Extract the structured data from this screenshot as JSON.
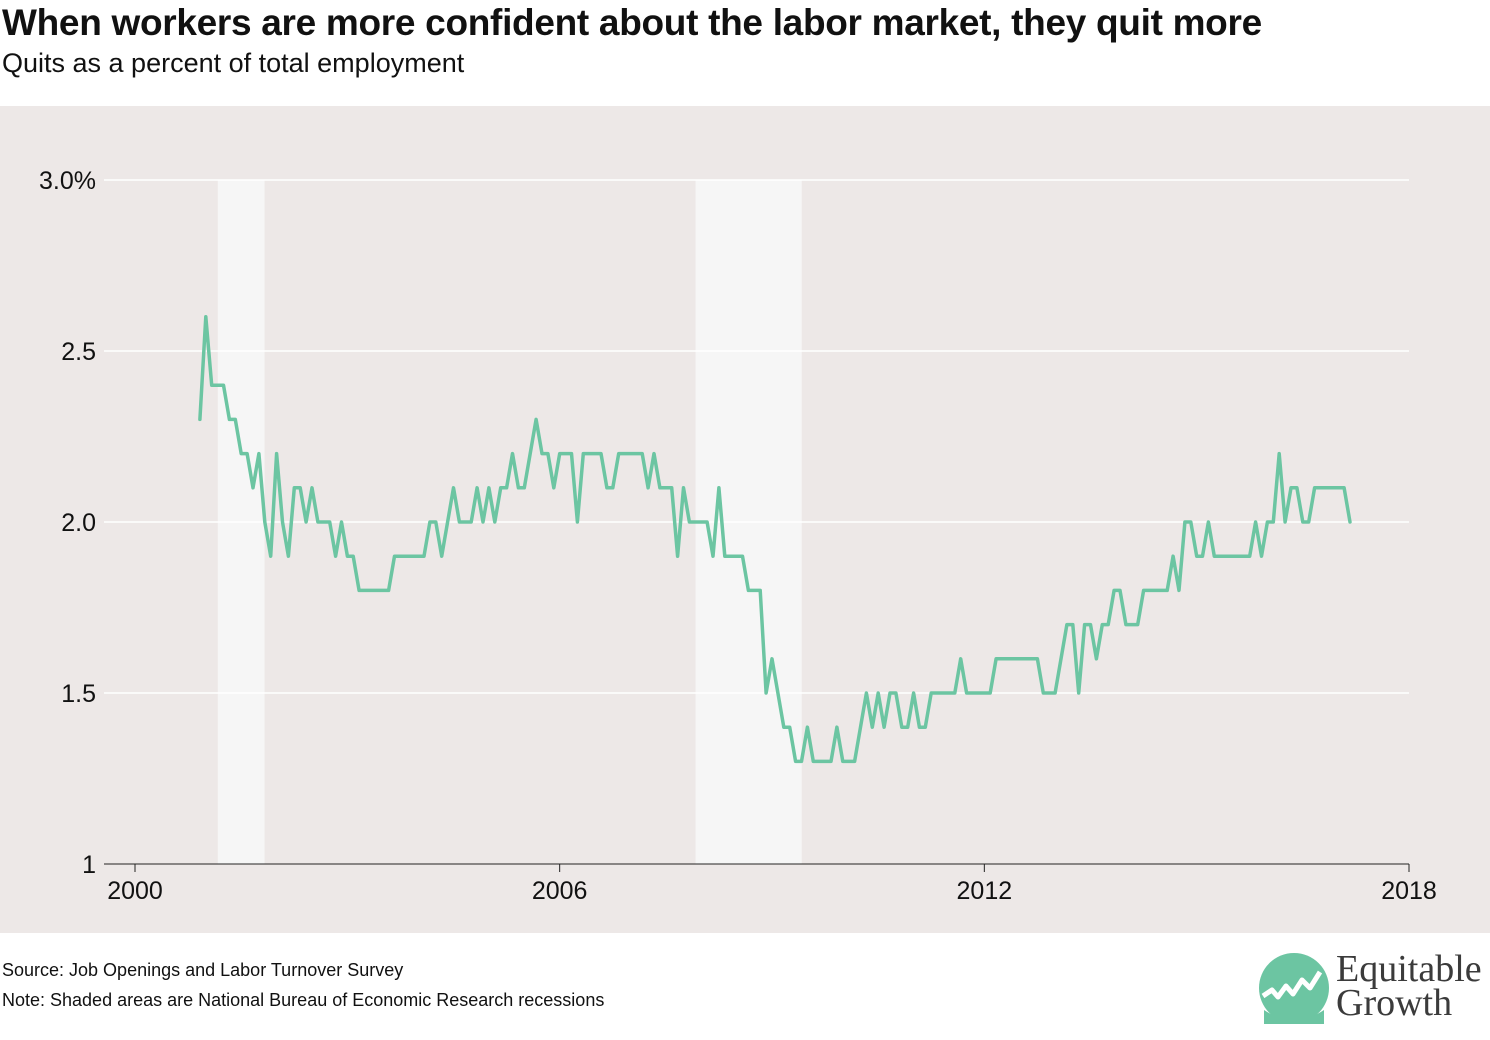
{
  "title": "When workers are more confident about the labor market, they quit more",
  "subtitle": "Quits as a percent of total employment",
  "footer": {
    "source": "Source: Job Openings and Labor Turnover Survey",
    "note": "Note: Shaded areas are National Bureau of Economic Research recessions"
  },
  "logo": {
    "line1": "Equitable",
    "line2": "Growth",
    "icon": "rising-line-logo-icon"
  },
  "colors": {
    "line": "#6cc5a2",
    "background": "#ede8e7",
    "recession": "#f6f6f6",
    "grid": "#ffffff",
    "logo": "#6cc5a2"
  },
  "chart_data": {
    "type": "line",
    "xlabel": "",
    "ylabel": "",
    "xlim": [
      2000,
      2018
    ],
    "ylim": [
      1.0,
      3.0
    ],
    "x_ticks": [
      {
        "value": 2000,
        "label": "2000"
      },
      {
        "value": 2006,
        "label": "2006"
      },
      {
        "value": 2012,
        "label": "2012"
      },
      {
        "value": 2018,
        "label": "2018"
      }
    ],
    "y_ticks": [
      {
        "value": 1.0,
        "label": "1"
      },
      {
        "value": 1.5,
        "label": "1.5"
      },
      {
        "value": 2.0,
        "label": "2.0"
      },
      {
        "value": 2.5,
        "label": "2.5"
      },
      {
        "value": 3.0,
        "label": "3.0%"
      }
    ],
    "recessions": [
      {
        "start": 2001.17,
        "end": 2001.83
      },
      {
        "start": 2007.92,
        "end": 2009.42
      }
    ],
    "grid": true,
    "series": [
      {
        "x_start": 2000.917,
        "x_step": 0.08333,
        "values": [
          2.3,
          2.6,
          2.4,
          2.4,
          2.4,
          2.3,
          2.3,
          2.2,
          2.2,
          2.1,
          2.2,
          2.0,
          1.9,
          2.2,
          2.0,
          1.9,
          2.1,
          2.1,
          2.0,
          2.1,
          2.0,
          2.0,
          2.0,
          1.9,
          2.0,
          1.9,
          1.9,
          1.8,
          1.8,
          1.8,
          1.8,
          1.8,
          1.8,
          1.9,
          1.9,
          1.9,
          1.9,
          1.9,
          1.9,
          2.0,
          2.0,
          1.9,
          2.0,
          2.1,
          2.0,
          2.0,
          2.0,
          2.1,
          2.0,
          2.1,
          2.0,
          2.1,
          2.1,
          2.2,
          2.1,
          2.1,
          2.2,
          2.3,
          2.2,
          2.2,
          2.1,
          2.2,
          2.2,
          2.2,
          2.0,
          2.2,
          2.2,
          2.2,
          2.2,
          2.1,
          2.1,
          2.2,
          2.2,
          2.2,
          2.2,
          2.2,
          2.1,
          2.2,
          2.1,
          2.1,
          2.1,
          1.9,
          2.1,
          2.0,
          2.0,
          2.0,
          2.0,
          1.9,
          2.1,
          1.9,
          1.9,
          1.9,
          1.9,
          1.8,
          1.8,
          1.8,
          1.5,
          1.6,
          1.5,
          1.4,
          1.4,
          1.3,
          1.3,
          1.4,
          1.3,
          1.3,
          1.3,
          1.3,
          1.4,
          1.3,
          1.3,
          1.3,
          1.4,
          1.5,
          1.4,
          1.5,
          1.4,
          1.5,
          1.5,
          1.4,
          1.4,
          1.5,
          1.4,
          1.4,
          1.5,
          1.5,
          1.5,
          1.5,
          1.5,
          1.6,
          1.5,
          1.5,
          1.5,
          1.5,
          1.5,
          1.6,
          1.6,
          1.6,
          1.6,
          1.6,
          1.6,
          1.6,
          1.6,
          1.5,
          1.5,
          1.5,
          1.6,
          1.7,
          1.7,
          1.5,
          1.7,
          1.7,
          1.6,
          1.7,
          1.7,
          1.8,
          1.8,
          1.7,
          1.7,
          1.7,
          1.8,
          1.8,
          1.8,
          1.8,
          1.8,
          1.9,
          1.8,
          2.0,
          2.0,
          1.9,
          1.9,
          2.0,
          1.9,
          1.9,
          1.9,
          1.9,
          1.9,
          1.9,
          1.9,
          2.0,
          1.9,
          2.0,
          2.0,
          2.2,
          2.0,
          2.1,
          2.1,
          2.0,
          2.0,
          2.1,
          2.1,
          2.1,
          2.1,
          2.1,
          2.1,
          2.0
        ]
      }
    ]
  }
}
